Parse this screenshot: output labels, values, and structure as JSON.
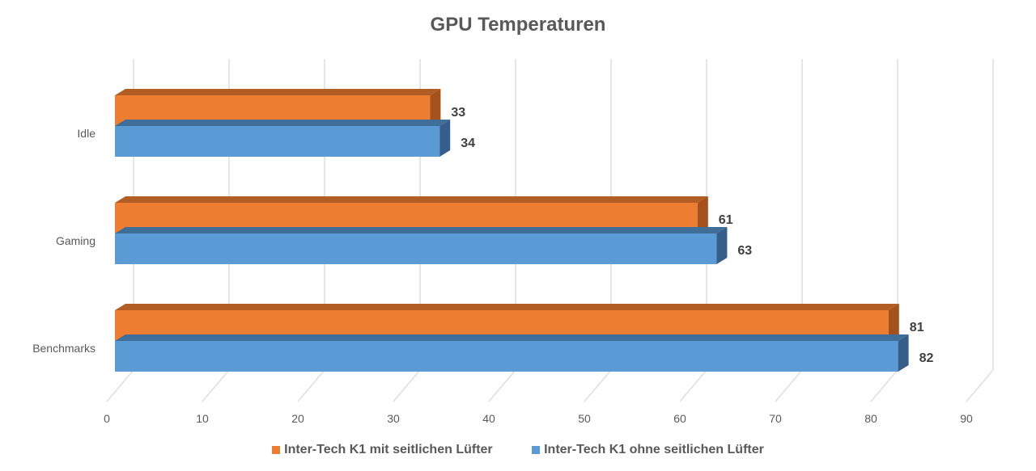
{
  "chart_data": {
    "type": "bar",
    "orientation": "horizontal",
    "style": "3d",
    "title": "GPU Temperaturen",
    "categories": [
      "Idle",
      "Gaming",
      "Benchmarks"
    ],
    "series": [
      {
        "name": "Inter-Tech K1 mit seitlichen Lüfter",
        "values": [
          33,
          61,
          81
        ],
        "color": "#ED7D31"
      },
      {
        "name": "Inter-Tech K1 ohne seitlichen Lüfter",
        "values": [
          34,
          63,
          82
        ],
        "color": "#5B9BD5"
      }
    ],
    "xlim": [
      0,
      90
    ],
    "xticks": [
      "0",
      "10",
      "20",
      "30",
      "40",
      "50",
      "60",
      "70",
      "80",
      "90"
    ],
    "xlabel": "",
    "ylabel": "",
    "grid": true,
    "data_labels": true,
    "legend": "bottom"
  }
}
